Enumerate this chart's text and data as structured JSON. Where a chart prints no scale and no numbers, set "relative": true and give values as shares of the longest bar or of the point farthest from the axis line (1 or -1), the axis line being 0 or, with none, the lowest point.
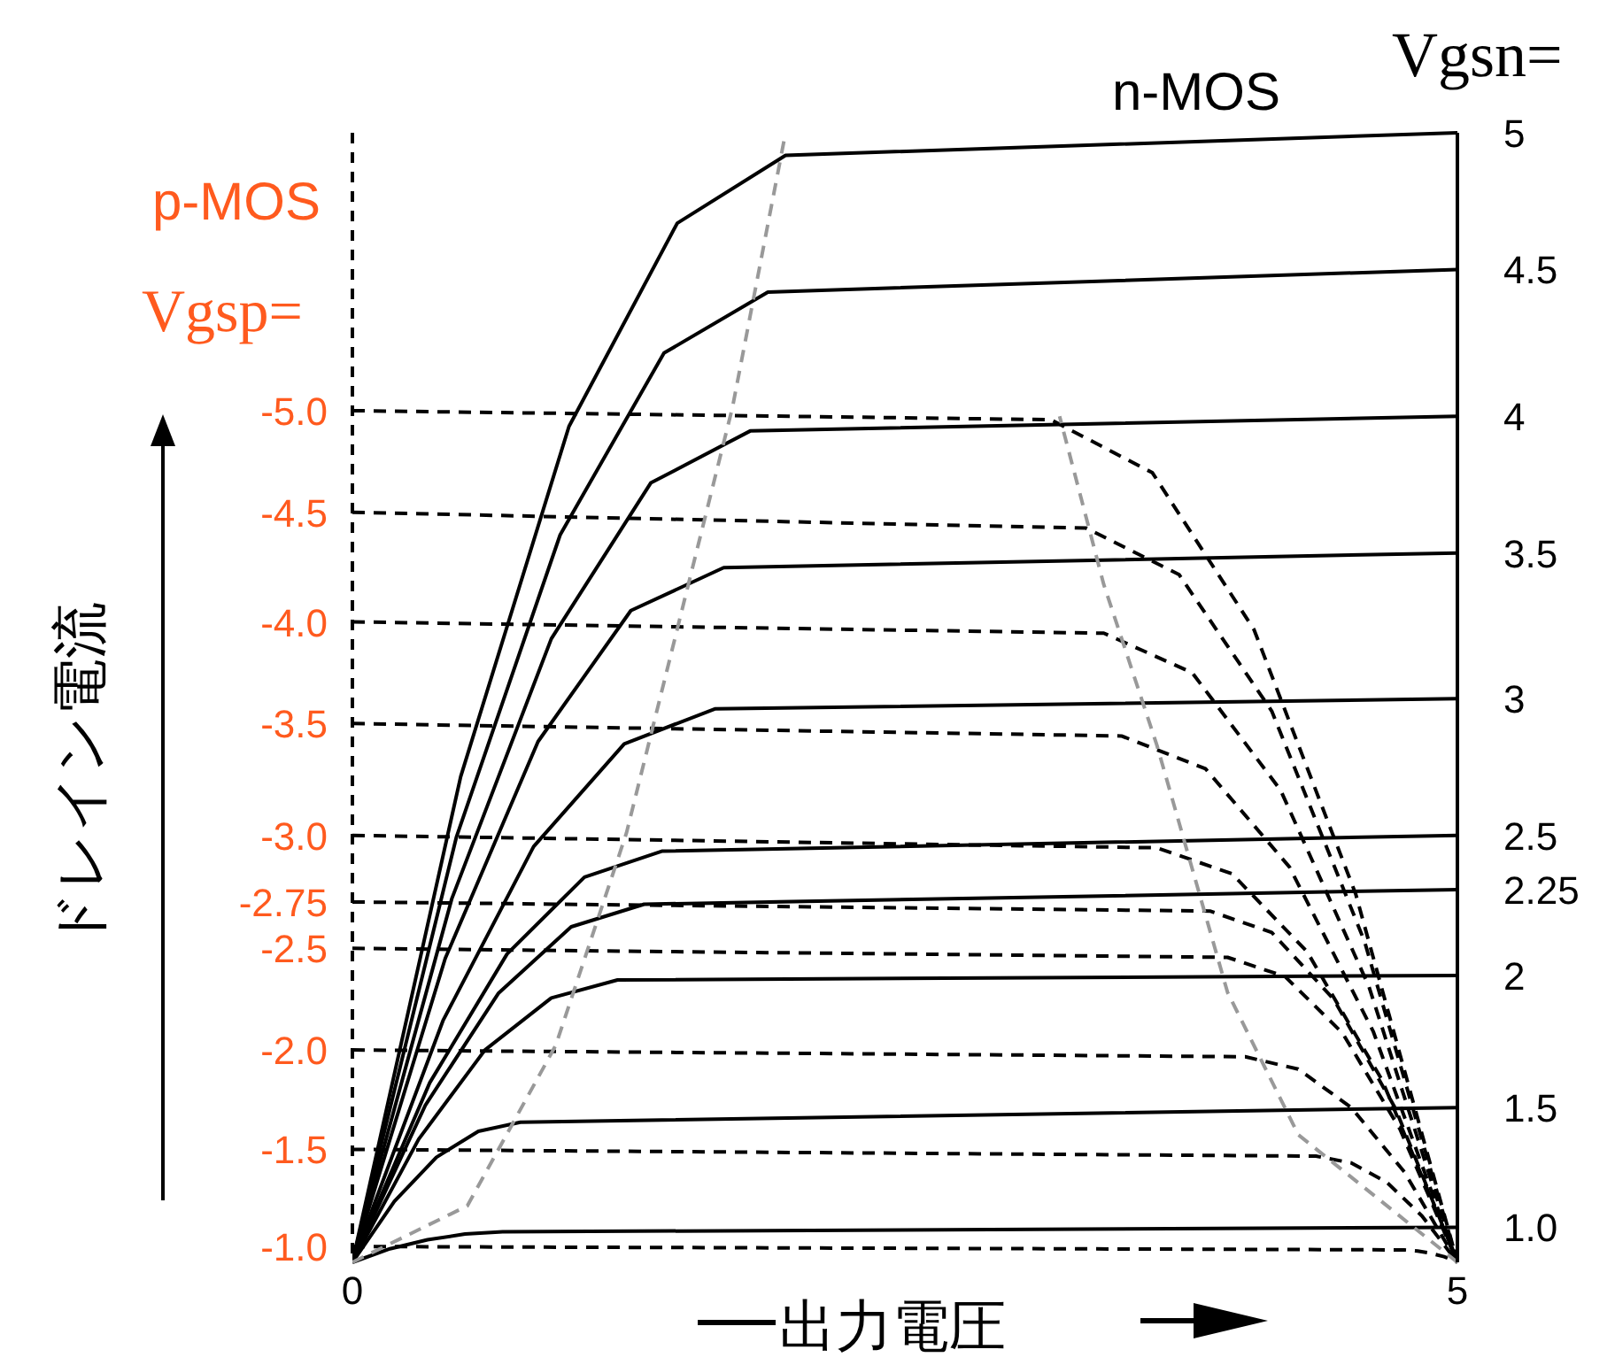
{
  "chart_data": {
    "type": "line",
    "relative": true,
    "xlabel": "出力電圧",
    "ylabel": "ドレイン電流",
    "xlim": [
      0,
      5
    ],
    "xticks": [
      0,
      5
    ],
    "tick_labels": "x",
    "marker": "none",
    "annotations": [
      "n-MOS",
      "Vgsn=",
      "p-MOS",
      "Vgsp="
    ],
    "series": [
      {
        "name": "5",
        "color": "#000000",
        "line_style": "solid",
        "x": [
          0,
          0.49,
          0.98,
          1.47,
          1.96,
          5
        ],
        "values": [
          0,
          0.43,
          0.74,
          0.92,
          0.98,
          1.0
        ]
      },
      {
        "name": "4.5",
        "color": "#000000",
        "line_style": "solid",
        "x": [
          0,
          0.47,
          0.94,
          1.41,
          1.88,
          5
        ],
        "values": [
          0,
          0.376,
          0.644,
          0.805,
          0.859,
          0.879
        ]
      },
      {
        "name": "4",
        "color": "#000000",
        "line_style": "solid",
        "x": [
          0,
          0.45,
          0.9,
          1.35,
          1.8,
          5
        ],
        "values": [
          0,
          0.322,
          0.552,
          0.69,
          0.736,
          0.749
        ]
      },
      {
        "name": "3.5",
        "color": "#000000",
        "line_style": "solid",
        "x": [
          0,
          0.42,
          0.84,
          1.26,
          1.68,
          5
        ],
        "values": [
          0,
          0.269,
          0.461,
          0.577,
          0.615,
          0.628
        ]
      },
      {
        "name": "3",
        "color": "#000000",
        "line_style": "solid",
        "x": [
          0,
          0.41,
          0.82,
          1.23,
          1.64,
          5
        ],
        "values": [
          0,
          0.214,
          0.368,
          0.459,
          0.49,
          0.499
        ]
      },
      {
        "name": "2.5",
        "color": "#000000",
        "line_style": "solid",
        "x": [
          0,
          0.35,
          0.7,
          1.05,
          1.4,
          5
        ],
        "values": [
          0,
          0.159,
          0.273,
          0.341,
          0.364,
          0.378
        ]
      },
      {
        "name": "2.25",
        "color": "#000000",
        "line_style": "solid",
        "x": [
          0,
          0.33,
          0.66,
          0.99,
          1.32,
          5
        ],
        "values": [
          0,
          0.139,
          0.238,
          0.297,
          0.317,
          0.33
        ]
      },
      {
        "name": "2",
        "color": "#000000",
        "line_style": "solid",
        "x": [
          0,
          0.3,
          0.6,
          0.9,
          1.2,
          5
        ],
        "values": [
          0,
          0.109,
          0.188,
          0.234,
          0.25,
          0.254
        ]
      },
      {
        "name": "1.5",
        "color": "#000000",
        "line_style": "solid",
        "x": [
          0,
          0.19,
          0.38,
          0.57,
          0.76,
          5
        ],
        "values": [
          0,
          0.054,
          0.093,
          0.116,
          0.124,
          0.137
        ]
      },
      {
        "name": "1.0",
        "color": "#000000",
        "line_style": "solid",
        "x": [
          0,
          0.17,
          0.34,
          0.51,
          0.68,
          5
        ],
        "values": [
          0,
          0.012,
          0.02,
          0.025,
          0.027,
          0.031
        ]
      },
      {
        "name": "-5.0",
        "color": "#000000",
        "line_style": "dashed",
        "x": [
          0,
          3.16,
          3.62,
          4.08,
          4.54,
          5
        ],
        "values": [
          0.754,
          0.746,
          0.699,
          0.56,
          0.326,
          0
        ]
      },
      {
        "name": "-4.5",
        "color": "#000000",
        "line_style": "dashed",
        "x": [
          0,
          3.32,
          3.74,
          4.16,
          4.58,
          5
        ],
        "values": [
          0.664,
          0.65,
          0.609,
          0.488,
          0.284,
          0
        ]
      },
      {
        "name": "-4.0",
        "color": "#000000",
        "line_style": "dashed",
        "x": [
          0,
          3.4,
          3.8,
          4.2,
          4.6,
          5
        ],
        "values": [
          0.567,
          0.557,
          0.522,
          0.418,
          0.244,
          0
        ]
      },
      {
        "name": "-3.5",
        "color": "#000000",
        "line_style": "dashed",
        "x": [
          0,
          3.48,
          3.86,
          4.24,
          4.62,
          5
        ],
        "values": [
          0.477,
          0.466,
          0.437,
          0.35,
          0.204,
          0
        ]
      },
      {
        "name": "-3.0",
        "color": "#000000",
        "line_style": "dashed",
        "x": [
          0,
          3.64,
          3.98,
          4.32,
          4.66,
          5
        ],
        "values": [
          0.378,
          0.367,
          0.344,
          0.275,
          0.161,
          0
        ]
      },
      {
        "name": "-2.75",
        "color": "#000000",
        "line_style": "dashed",
        "x": [
          0,
          3.88,
          4.16,
          4.44,
          4.72,
          5
        ],
        "values": [
          0.319,
          0.311,
          0.292,
          0.233,
          0.136,
          0
        ]
      },
      {
        "name": "-2.5",
        "color": "#000000",
        "line_style": "dashed",
        "x": [
          0,
          3.96,
          4.22,
          4.48,
          4.74,
          5
        ],
        "values": [
          0.278,
          0.27,
          0.253,
          0.203,
          0.118,
          0
        ]
      },
      {
        "name": "-2.0",
        "color": "#000000",
        "line_style": "dashed",
        "x": [
          0,
          4.04,
          4.28,
          4.52,
          4.76,
          5
        ],
        "values": [
          0.188,
          0.182,
          0.171,
          0.137,
          0.08,
          0
        ]
      },
      {
        "name": "-1.5",
        "color": "#000000",
        "line_style": "dashed",
        "x": [
          0,
          4.36,
          4.52,
          4.68,
          4.84,
          5
        ],
        "values": [
          0.1,
          0.094,
          0.088,
          0.071,
          0.041,
          0
        ]
      },
      {
        "name": "-1.0",
        "color": "#000000",
        "line_style": "dashed",
        "x": [
          0,
          4.76,
          4.82,
          4.88,
          4.94,
          5
        ],
        "values": [
          0.014,
          0.011,
          0.01,
          0.008,
          0.005,
          0
        ]
      },
      {
        "color": "#999999",
        "line_style": "dashed",
        "x": [
          0,
          0.52,
          0.92,
          1.24,
          1.52,
          1.72,
          1.96
        ],
        "values": [
          0,
          0.05,
          0.192,
          0.38,
          0.6,
          0.757,
          1.0
        ]
      },
      {
        "color": "#999999",
        "line_style": "dashed",
        "x": [
          5,
          4.28,
          3.96,
          3.64,
          3.4,
          3.2
        ],
        "values": [
          0,
          0.113,
          0.239,
          0.458,
          0.6,
          0.749
        ]
      }
    ]
  }
}
